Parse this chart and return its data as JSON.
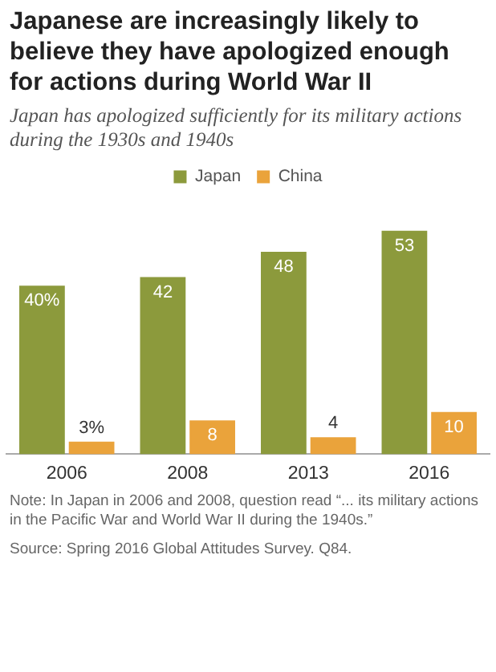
{
  "chart_data": {
    "type": "bar",
    "title": "Japanese are increasingly likely to believe they have apologized enough for actions during World War II",
    "subtitle": "Japan has apologized sufficiently for its military actions during the 1930s and 1940s",
    "categories": [
      "2006",
      "2008",
      "2013",
      "2016"
    ],
    "series": [
      {
        "name": "Japan",
        "color": "#8c9a3c",
        "values": [
          40,
          42,
          48,
          53
        ],
        "value_labels": [
          "40%",
          "42",
          "48",
          "53"
        ]
      },
      {
        "name": "China",
        "color": "#eaa33b",
        "values": [
          3,
          8,
          4,
          10
        ],
        "value_labels": [
          "3%",
          "8",
          "4",
          "10"
        ]
      }
    ],
    "legend": "top",
    "grid": false,
    "annotations": [
      "Note: In Japan in 2006 and 2008, question read “... its military actions in the Pacific War and World War II during the 1940s.”",
      "Source: Spring 2016 Global Attitudes Survey. Q84."
    ]
  }
}
